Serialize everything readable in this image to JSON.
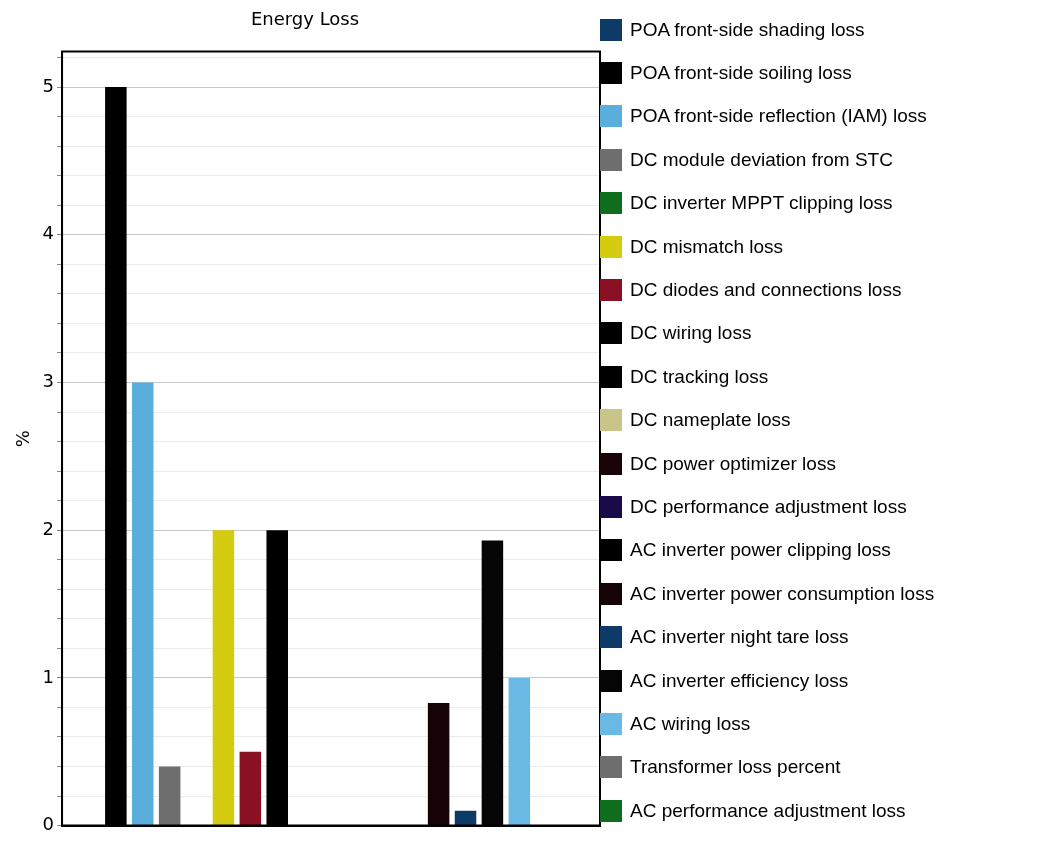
{
  "chart_data": {
    "type": "bar",
    "title": "Energy Loss",
    "ylabel": "%",
    "categories": [
      null
    ],
    "ylim": [
      0,
      5.24
    ],
    "yticks": [
      0,
      {
        "value": 0.2,
        "label": null
      },
      {
        "value": 0.4,
        "label": null
      },
      {
        "value": 0.6,
        "label": null
      },
      {
        "value": 0.8,
        "label": null
      },
      1,
      {
        "value": 1.2,
        "label": null
      },
      {
        "value": 1.4,
        "label": null
      },
      {
        "value": 1.6,
        "label": null
      },
      {
        "value": 1.8,
        "label": null
      },
      2,
      {
        "value": 2.2,
        "label": null
      },
      {
        "value": 2.4,
        "label": null
      },
      {
        "value": 2.6,
        "label": null
      },
      {
        "value": 2.8,
        "label": null
      },
      3,
      {
        "value": 3.2,
        "label": null
      },
      {
        "value": 3.4,
        "label": null
      },
      {
        "value": 3.6,
        "label": null
      },
      {
        "value": 3.8,
        "label": null
      },
      4,
      {
        "value": 4.2,
        "label": null
      },
      {
        "value": 4.4,
        "label": null
      },
      {
        "value": 4.6,
        "label": null
      },
      {
        "value": 4.8,
        "label": null
      },
      5,
      {
        "value": 5.2,
        "label": null
      }
    ],
    "grid": "y",
    "legend": "right",
    "series": [
      {
        "name": "POA front-side shading loss",
        "color": "#0d3a66",
        "values": [
          0
        ]
      },
      {
        "name": "POA front-side soiling loss",
        "color": "#000000",
        "values": [
          5
        ]
      },
      {
        "name": "POA front-side reflection (IAM) loss",
        "color": "#5aaedc",
        "values": [
          3
        ]
      },
      {
        "name": "DC module deviation from STC",
        "color": "#6e6e6e",
        "values": [
          0.4
        ]
      },
      {
        "name": "DC inverter MPPT clipping loss",
        "color": "#0e6e1e",
        "values": [
          0
        ]
      },
      {
        "name": "DC mismatch loss",
        "color": "#d4cc10",
        "values": [
          2
        ]
      },
      {
        "name": "DC diodes and connections loss",
        "color": "#8a1024",
        "values": [
          0.5
        ]
      },
      {
        "name": "DC wiring loss",
        "color": "#000000",
        "values": [
          2
        ]
      },
      {
        "name": "DC tracking loss",
        "color": "#000000",
        "values": [
          0
        ]
      },
      {
        "name": "DC nameplate loss",
        "color": "#c8c48a",
        "values": [
          0
        ]
      },
      {
        "name": "DC power optimizer loss",
        "color": "#1a0408",
        "values": [
          0
        ]
      },
      {
        "name": "DC performance adjustment loss",
        "color": "#1a0a4a",
        "values": [
          0
        ]
      },
      {
        "name": "AC inverter power clipping loss",
        "color": "#000000",
        "values": [
          0
        ]
      },
      {
        "name": "AC inverter power consumption loss",
        "color": "#150306",
        "values": [
          0.83
        ]
      },
      {
        "name": "AC inverter night tare loss",
        "color": "#0d3a66",
        "values": [
          0.1
        ]
      },
      {
        "name": "AC inverter efficiency loss",
        "color": "#050505",
        "values": [
          1.93
        ]
      },
      {
        "name": "AC wiring loss",
        "color": "#6ab8e4",
        "values": [
          1.0
        ]
      },
      {
        "name": "Transformer loss percent",
        "color": "#6e6e6e",
        "values": [
          0
        ]
      },
      {
        "name": "AC performance adjustment loss",
        "color": "#0e6e1e",
        "values": [
          0
        ]
      }
    ]
  }
}
